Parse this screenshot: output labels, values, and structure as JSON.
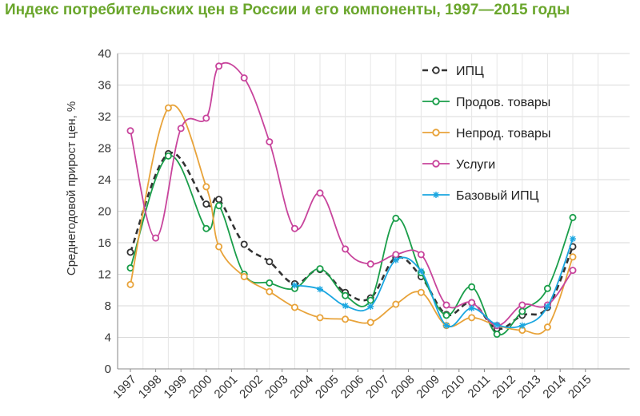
{
  "chart_data": {
    "type": "line",
    "title": "Индекс потребительских цен в России и его компоненты, 1997—2015 годы",
    "ylabel": "Среднегодовой прирост цен, %",
    "xlabel": "",
    "ylim": [
      0,
      40
    ],
    "yticks": [
      0,
      4,
      8,
      12,
      16,
      20,
      24,
      28,
      32,
      36,
      40
    ],
    "grid": true,
    "legend_position": "top-right",
    "categories": [
      "1997",
      "1998",
      "1999",
      "2000",
      "2001",
      "2002",
      "2003",
      "2004",
      "2005",
      "2006",
      "2007",
      "2008",
      "2009",
      "2010",
      "2011",
      "2012",
      "2013",
      "2014",
      "2015"
    ],
    "series": [
      {
        "name": "ИПЦ",
        "color": "#333333",
        "dash": true,
        "marker": "circle",
        "points": [
          {
            "x": 1997.0,
            "y": 14.8
          },
          {
            "x": 1998.5,
            "y": 27.3
          },
          {
            "x": 2000.0,
            "y": 20.9
          },
          {
            "x": 2000.5,
            "y": 21.5
          },
          {
            "x": 2001.5,
            "y": 15.8
          },
          {
            "x": 2002.5,
            "y": 13.6
          },
          {
            "x": 2003.5,
            "y": 10.8
          },
          {
            "x": 2004.5,
            "y": 12.6
          },
          {
            "x": 2005.5,
            "y": 9.7
          },
          {
            "x": 2006.5,
            "y": 9.0
          },
          {
            "x": 2007.5,
            "y": 14.1
          },
          {
            "x": 2008.5,
            "y": 11.7
          },
          {
            "x": 2009.5,
            "y": 6.9
          },
          {
            "x": 2010.5,
            "y": 8.4
          },
          {
            "x": 2011.5,
            "y": 5.1
          },
          {
            "x": 2012.5,
            "y": 6.8
          },
          {
            "x": 2013.5,
            "y": 7.8
          },
          {
            "x": 2014.5,
            "y": 15.5
          }
        ]
      },
      {
        "name": "Продов. товары",
        "color": "#1a9e4a",
        "dash": false,
        "marker": "circle",
        "points": [
          {
            "x": 1997.0,
            "y": 12.8
          },
          {
            "x": 1998.5,
            "y": 27.0
          },
          {
            "x": 2000.0,
            "y": 17.8
          },
          {
            "x": 2000.5,
            "y": 20.7
          },
          {
            "x": 2001.5,
            "y": 12.0
          },
          {
            "x": 2002.5,
            "y": 10.9
          },
          {
            "x": 2003.5,
            "y": 10.2
          },
          {
            "x": 2004.5,
            "y": 12.7
          },
          {
            "x": 2005.5,
            "y": 9.3
          },
          {
            "x": 2006.5,
            "y": 8.7
          },
          {
            "x": 2007.5,
            "y": 19.1
          },
          {
            "x": 2008.5,
            "y": 12.2
          },
          {
            "x": 2009.5,
            "y": 6.8
          },
          {
            "x": 2010.5,
            "y": 10.4
          },
          {
            "x": 2011.5,
            "y": 4.4
          },
          {
            "x": 2012.5,
            "y": 7.3
          },
          {
            "x": 2013.5,
            "y": 10.2
          },
          {
            "x": 2014.5,
            "y": 19.2
          }
        ]
      },
      {
        "name": "Непрод. товары",
        "color": "#e8a33a",
        "dash": false,
        "marker": "circle",
        "points": [
          {
            "x": 1997.0,
            "y": 10.7
          },
          {
            "x": 1998.5,
            "y": 33.1
          },
          {
            "x": 2000.0,
            "y": 23.1
          },
          {
            "x": 2000.5,
            "y": 15.5
          },
          {
            "x": 2001.5,
            "y": 11.7
          },
          {
            "x": 2002.5,
            "y": 9.8
          },
          {
            "x": 2003.5,
            "y": 7.8
          },
          {
            "x": 2004.5,
            "y": 6.5
          },
          {
            "x": 2005.5,
            "y": 6.3
          },
          {
            "x": 2006.5,
            "y": 5.9
          },
          {
            "x": 2007.5,
            "y": 8.2
          },
          {
            "x": 2008.5,
            "y": 9.7
          },
          {
            "x": 2009.5,
            "y": 5.5
          },
          {
            "x": 2010.5,
            "y": 6.5
          },
          {
            "x": 2011.5,
            "y": 5.5
          },
          {
            "x": 2012.5,
            "y": 4.9
          },
          {
            "x": 2013.5,
            "y": 5.3
          },
          {
            "x": 2014.5,
            "y": 14.2
          }
        ]
      },
      {
        "name": "Услуги",
        "color": "#c8449c",
        "dash": false,
        "marker": "circle",
        "points": [
          {
            "x": 1997.0,
            "y": 30.2
          },
          {
            "x": 1998.0,
            "y": 16.6
          },
          {
            "x": 1999.0,
            "y": 30.5
          },
          {
            "x": 2000.0,
            "y": 31.8
          },
          {
            "x": 2000.5,
            "y": 38.4
          },
          {
            "x": 2001.5,
            "y": 36.9
          },
          {
            "x": 2002.5,
            "y": 28.8
          },
          {
            "x": 2003.5,
            "y": 17.8
          },
          {
            "x": 2004.5,
            "y": 22.3
          },
          {
            "x": 2005.5,
            "y": 15.2
          },
          {
            "x": 2006.5,
            "y": 13.3
          },
          {
            "x": 2007.5,
            "y": 14.5
          },
          {
            "x": 2008.5,
            "y": 14.5
          },
          {
            "x": 2009.5,
            "y": 8.1
          },
          {
            "x": 2010.5,
            "y": 8.4
          },
          {
            "x": 2011.5,
            "y": 5.5
          },
          {
            "x": 2012.5,
            "y": 8.1
          },
          {
            "x": 2013.5,
            "y": 8.1
          },
          {
            "x": 2014.5,
            "y": 12.5
          }
        ]
      },
      {
        "name": "Базовый ИПЦ",
        "color": "#1aa6e0",
        "dash": false,
        "marker": "star",
        "points": [
          {
            "x": 2003.5,
            "y": 10.6
          },
          {
            "x": 2004.5,
            "y": 10.1
          },
          {
            "x": 2005.5,
            "y": 8.0
          },
          {
            "x": 2006.5,
            "y": 7.9
          },
          {
            "x": 2007.5,
            "y": 13.8
          },
          {
            "x": 2008.5,
            "y": 12.4
          },
          {
            "x": 2009.5,
            "y": 5.5
          },
          {
            "x": 2010.5,
            "y": 7.7
          },
          {
            "x": 2011.5,
            "y": 5.6
          },
          {
            "x": 2012.5,
            "y": 5.5
          },
          {
            "x": 2013.5,
            "y": 7.9
          },
          {
            "x": 2014.5,
            "y": 16.5
          }
        ]
      }
    ]
  }
}
